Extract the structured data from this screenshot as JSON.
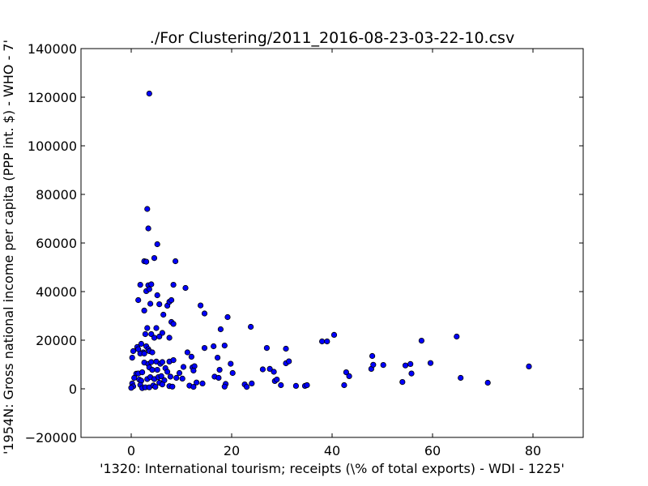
{
  "chart_data": {
    "type": "scatter",
    "title": "./For Clustering/2011_2016-08-23-03-22-10.csv",
    "xlabel": "'1320: International tourism; receipts  (\\% of total exports) - WDI - 1225'",
    "ylabel": "'1954N: Gross national income per capita (PPP int. $) - WHO - 7'",
    "xlim": [
      -10,
      90
    ],
    "ylim": [
      -20000,
      140000
    ],
    "xticks": [
      0,
      20,
      40,
      60,
      80
    ],
    "yticks": [
      -20000,
      0,
      20000,
      40000,
      60000,
      80000,
      100000,
      120000,
      140000
    ],
    "xtick_labels": [
      "0",
      "20",
      "40",
      "60",
      "80"
    ],
    "ytick_labels": [
      "−20000",
      "0",
      "20000",
      "40000",
      "60000",
      "80000",
      "100000",
      "120000",
      "140000"
    ],
    "grid": false,
    "marker_color": "#0000ff",
    "points": [
      [
        3.6,
        121500
      ],
      [
        3.2,
        74000
      ],
      [
        3.4,
        66000
      ],
      [
        5.2,
        59500
      ],
      [
        2.6,
        52500
      ],
      [
        3.0,
        52300
      ],
      [
        4.6,
        53800
      ],
      [
        8.8,
        52500
      ],
      [
        1.8,
        42800
      ],
      [
        3.4,
        42600
      ],
      [
        4.0,
        43000
      ],
      [
        3.0,
        40200
      ],
      [
        3.6,
        41000
      ],
      [
        5.2,
        38500
      ],
      [
        8.4,
        42800
      ],
      [
        10.8,
        41500
      ],
      [
        1.4,
        36500
      ],
      [
        3.8,
        35000
      ],
      [
        5.6,
        34800
      ],
      [
        7.2,
        34200
      ],
      [
        7.6,
        35800
      ],
      [
        8.0,
        36500
      ],
      [
        2.6,
        32200
      ],
      [
        6.4,
        30500
      ],
      [
        8.0,
        27500
      ],
      [
        8.4,
        26700
      ],
      [
        13.8,
        34300
      ],
      [
        14.6,
        31000
      ],
      [
        17.8,
        24500
      ],
      [
        19.2,
        29500
      ],
      [
        23.8,
        25500
      ],
      [
        3.2,
        25000
      ],
      [
        5.0,
        25000
      ],
      [
        6.2,
        23000
      ],
      [
        2.8,
        22500
      ],
      [
        4.0,
        22500
      ],
      [
        4.6,
        21000
      ],
      [
        5.6,
        21500
      ],
      [
        7.6,
        21000
      ],
      [
        1.2,
        17200
      ],
      [
        2.0,
        18500
      ],
      [
        3.0,
        17500
      ],
      [
        3.4,
        16300
      ],
      [
        2.4,
        15000
      ],
      [
        1.8,
        14500
      ],
      [
        2.6,
        14500
      ],
      [
        3.6,
        15500
      ],
      [
        4.2,
        15000
      ],
      [
        0.4,
        15500
      ],
      [
        0.2,
        12800
      ],
      [
        1.4,
        16300
      ],
      [
        11.2,
        15000
      ],
      [
        12.0,
        13200
      ],
      [
        14.6,
        16800
      ],
      [
        16.4,
        17500
      ],
      [
        17.2,
        12800
      ],
      [
        18.6,
        17800
      ],
      [
        27.0,
        16800
      ],
      [
        30.8,
        16500
      ],
      [
        38.0,
        19500
      ],
      [
        39.0,
        19500
      ],
      [
        40.4,
        22200
      ],
      [
        57.8,
        19800
      ],
      [
        64.8,
        21500
      ],
      [
        2.6,
        10800
      ],
      [
        3.4,
        10200
      ],
      [
        4.0,
        11000
      ],
      [
        5.0,
        11200
      ],
      [
        5.8,
        10300
      ],
      [
        6.2,
        11000
      ],
      [
        7.6,
        11200
      ],
      [
        8.4,
        11800
      ],
      [
        10.4,
        9000
      ],
      [
        12.2,
        8800
      ],
      [
        12.6,
        9300
      ],
      [
        19.8,
        10300
      ],
      [
        30.8,
        10500
      ],
      [
        31.4,
        11300
      ],
      [
        48.0,
        13500
      ],
      [
        50.2,
        9800
      ],
      [
        54.6,
        9600
      ],
      [
        55.6,
        10200
      ],
      [
        59.6,
        10600
      ],
      [
        79.2,
        9200
      ],
      [
        1.0,
        6200
      ],
      [
        1.4,
        6300
      ],
      [
        2.2,
        6800
      ],
      [
        3.6,
        8800
      ],
      [
        4.2,
        7800
      ],
      [
        5.2,
        7800
      ],
      [
        6.8,
        8500
      ],
      [
        7.2,
        7000
      ],
      [
        9.6,
        6500
      ],
      [
        12.4,
        7500
      ],
      [
        17.6,
        7800
      ],
      [
        20.2,
        6500
      ],
      [
        26.2,
        8000
      ],
      [
        27.6,
        8200
      ],
      [
        28.4,
        7000
      ],
      [
        47.8,
        8200
      ],
      [
        48.2,
        9900
      ],
      [
        42.8,
        6800
      ],
      [
        43.4,
        5200
      ],
      [
        55.8,
        6300
      ],
      [
        0.6,
        4500
      ],
      [
        1.6,
        3800
      ],
      [
        2.0,
        3300
      ],
      [
        3.2,
        4000
      ],
      [
        3.8,
        4800
      ],
      [
        4.6,
        4000
      ],
      [
        5.4,
        4800
      ],
      [
        6.0,
        5200
      ],
      [
        6.6,
        3500
      ],
      [
        7.8,
        5000
      ],
      [
        9.0,
        4500
      ],
      [
        10.2,
        4200
      ],
      [
        13.0,
        2600
      ],
      [
        14.2,
        2200
      ],
      [
        16.6,
        5000
      ],
      [
        17.4,
        4500
      ],
      [
        18.8,
        2000
      ],
      [
        22.6,
        1800
      ],
      [
        24.0,
        2200
      ],
      [
        28.6,
        3200
      ],
      [
        29.0,
        3800
      ],
      [
        29.8,
        1500
      ],
      [
        32.8,
        1200
      ],
      [
        34.6,
        1200
      ],
      [
        35.0,
        1500
      ],
      [
        42.4,
        1500
      ],
      [
        54.0,
        2800
      ],
      [
        65.6,
        4500
      ],
      [
        71.0,
        2500
      ],
      [
        0.2,
        2200
      ],
      [
        0.4,
        1000
      ],
      [
        0.0,
        400
      ],
      [
        1.8,
        1600
      ],
      [
        2.2,
        300
      ],
      [
        2.8,
        600
      ],
      [
        3.6,
        600
      ],
      [
        4.4,
        1400
      ],
      [
        4.8,
        800
      ],
      [
        5.6,
        2500
      ],
      [
        6.2,
        1800
      ],
      [
        7.6,
        1100
      ],
      [
        8.2,
        900
      ],
      [
        11.6,
        1300
      ],
      [
        12.4,
        800
      ],
      [
        18.6,
        900
      ],
      [
        23.0,
        800
      ]
    ]
  }
}
